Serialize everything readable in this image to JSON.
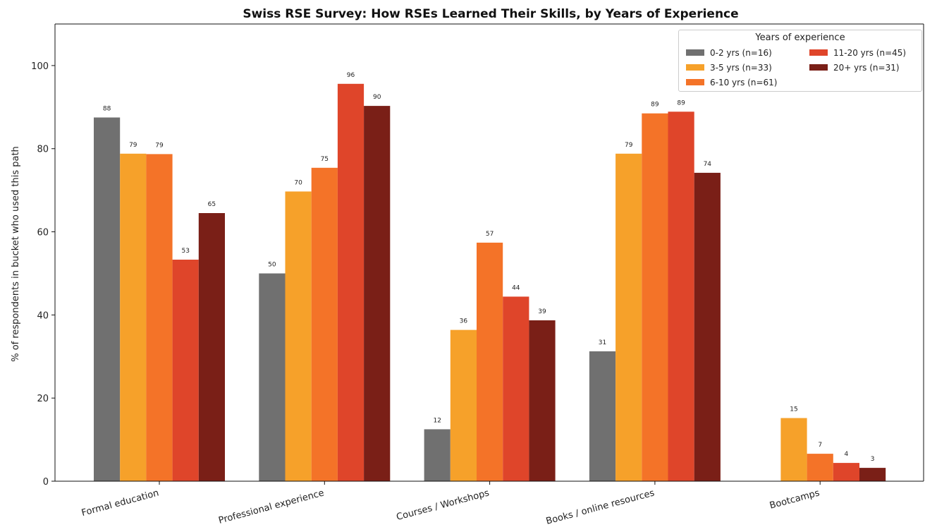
{
  "chart_data": {
    "type": "bar",
    "title": "Swiss RSE Survey: How RSEs Learned Their Skills, by Years of Experience",
    "xlabel": "",
    "ylabel": "% of respondents in bucket who used this path",
    "ylim": [
      0,
      110
    ],
    "yticks": [
      "0",
      "20",
      "40",
      "60",
      "80",
      "100"
    ],
    "grid": false,
    "legend_placement": "top-right",
    "legend_title": "Years of experience",
    "categories": [
      "Formal education",
      "Professional experience",
      "Courses / Workshops",
      "Books / online resources",
      "Bootcamps"
    ],
    "series": [
      {
        "name": "0-2 yrs (n=16)",
        "color": "#707070",
        "values": [
          88,
          50,
          12,
          31,
          0
        ]
      },
      {
        "name": "3-5 yrs (n=33)",
        "color": "#f6a12a",
        "values": [
          79,
          70,
          36,
          79,
          15
        ]
      },
      {
        "name": "6-10 yrs (n=61)",
        "color": "#f47328",
        "values": [
          79,
          75,
          57,
          89,
          7
        ]
      },
      {
        "name": "11-20 yrs (n=45)",
        "color": "#df452a",
        "values": [
          53,
          96,
          44,
          89,
          4
        ]
      },
      {
        "name": "20+ yrs (n=31)",
        "color": "#7a1f17",
        "values": [
          65,
          90,
          39,
          74,
          3
        ]
      }
    ],
    "data_labels": [
      [
        "88",
        "50",
        "12",
        "31",
        ""
      ],
      [
        "79",
        "70",
        "36",
        "79",
        "15"
      ],
      [
        "79",
        "75",
        "57",
        "89",
        "7"
      ],
      [
        "53",
        "96",
        "44",
        "89",
        "4"
      ],
      [
        "65",
        "90",
        "39",
        "74",
        "3"
      ]
    ],
    "bar_heights_exact": [
      [
        87.5,
        50.0,
        12.5,
        31.25,
        0
      ],
      [
        78.8,
        69.7,
        36.4,
        78.8,
        15.2
      ],
      [
        78.7,
        75.4,
        57.4,
        88.5,
        6.6
      ],
      [
        53.3,
        95.6,
        44.4,
        88.9,
        4.4
      ],
      [
        64.5,
        90.3,
        38.7,
        74.2,
        3.2
      ]
    ]
  }
}
